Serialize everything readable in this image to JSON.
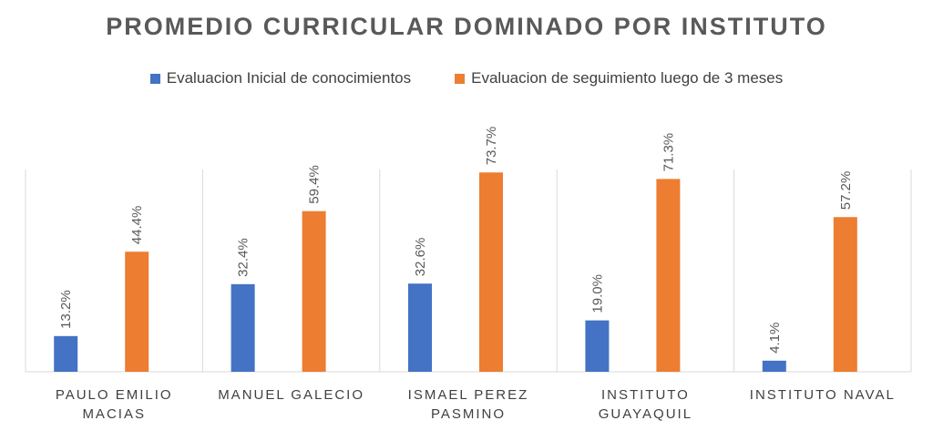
{
  "chart_data": {
    "type": "bar",
    "title": "PROMEDIO CURRICULAR DOMINADO POR INSTITUTO",
    "categories": [
      [
        "PAULO EMILIO",
        "MACIAS"
      ],
      [
        "MANUEL GALECIO"
      ],
      [
        "ISMAEL PEREZ",
        "PASMINO"
      ],
      [
        "INSTITUTO",
        "GUAYAQUIL"
      ],
      [
        "INSTITUTO NAVAL"
      ]
    ],
    "series": [
      {
        "name": "Evaluacion Inicial de conocimientos",
        "color": "#4472C4",
        "values": [
          13.2,
          32.4,
          32.6,
          19.0,
          4.1
        ],
        "labels": [
          "13.2%",
          "32.4%",
          "32.6%",
          "19.0%",
          "4.1%"
        ]
      },
      {
        "name": "Evaluacion de seguimiento luego de 3 meses",
        "color": "#ED7D31",
        "values": [
          44.4,
          59.4,
          73.7,
          71.3,
          57.2
        ],
        "labels": [
          "44.4%",
          "59.4%",
          "73.7%",
          "71.3%",
          "57.2%"
        ]
      }
    ],
    "ylim": [
      0,
      80
    ],
    "grid": false,
    "legend_position": "top",
    "xlabel": "",
    "ylabel": ""
  }
}
